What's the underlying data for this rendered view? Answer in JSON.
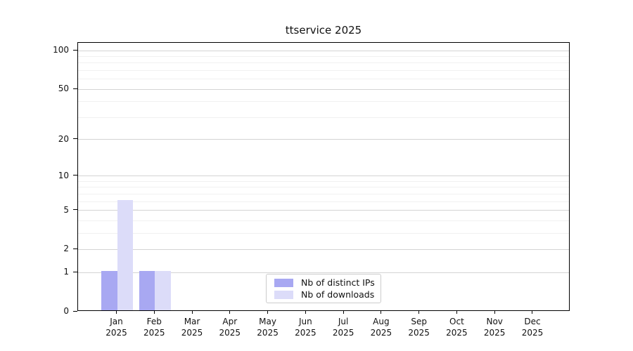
{
  "title": "ttservice 2025",
  "colors": {
    "distinct_ips": "#a8a8f2",
    "downloads": "#dcdcf9",
    "grid_major": "#d4d4d4",
    "grid_minor": "#f1f1f1",
    "axis": "#000000",
    "legend_border": "#cccccc"
  },
  "chart_data": {
    "type": "bar",
    "title": "ttservice 2025",
    "categories": [
      "Jan 2025",
      "Feb 2025",
      "Mar 2025",
      "Apr 2025",
      "May 2025",
      "Jun 2025",
      "Jul 2025",
      "Aug 2025",
      "Sep 2025",
      "Oct 2025",
      "Nov 2025",
      "Dec 2025"
    ],
    "months": [
      "Jan",
      "Feb",
      "Mar",
      "Apr",
      "May",
      "Jun",
      "Jul",
      "Aug",
      "Sep",
      "Oct",
      "Nov",
      "Dec"
    ],
    "year": "2025",
    "series": [
      {
        "name": "Nb of distinct IPs",
        "color": "#a8a8f2",
        "values": [
          1,
          1,
          0,
          0,
          0,
          0,
          0,
          0,
          0,
          0,
          0,
          0
        ]
      },
      {
        "name": "Nb of downloads",
        "color": "#dcdcf9",
        "values": [
          6,
          1,
          0,
          0,
          0,
          0,
          0,
          0,
          0,
          0,
          0,
          0
        ]
      }
    ],
    "xlabel": "",
    "ylabel": "",
    "y_ticks": [
      0,
      1,
      2,
      5,
      10,
      20,
      50,
      100
    ],
    "y_minor_ticks": [
      3,
      4,
      6,
      7,
      8,
      9,
      30,
      40,
      60,
      70,
      80,
      90
    ],
    "y_scale": "log1p",
    "ylim": [
      0,
      115
    ],
    "grid": true,
    "legend_position": "lower center"
  }
}
